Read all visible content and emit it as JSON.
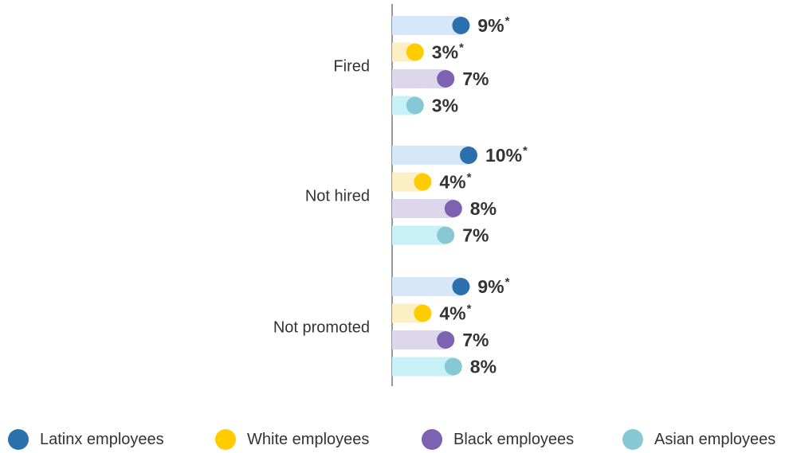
{
  "chart_data": {
    "type": "bar",
    "categories": [
      "Fired",
      "Not hired",
      "Not promoted"
    ],
    "unit": "%",
    "series": [
      {
        "name": "Latinx employees",
        "color": "#2c6fad",
        "track_color": "#d6e7fa",
        "values": [
          9,
          10,
          9
        ],
        "labels": [
          "9%",
          "10%",
          "9%"
        ],
        "significant": [
          true,
          true,
          true
        ]
      },
      {
        "name": "White employees",
        "color": "#ffcc00",
        "track_color": "#fbefc3",
        "values": [
          3,
          4,
          4
        ],
        "labels": [
          "3%",
          "4%",
          "4%"
        ],
        "significant": [
          true,
          true,
          true
        ]
      },
      {
        "name": "Black employees",
        "color": "#7c62b0",
        "track_color": "#dcd7ea",
        "values": [
          7,
          8,
          7
        ],
        "labels": [
          "7%",
          "8%",
          "7%"
        ],
        "significant": [
          false,
          false,
          false
        ]
      },
      {
        "name": "Asian employees",
        "color": "#86c8d4",
        "track_color": "#c8f0f7",
        "values": [
          3,
          7,
          8
        ],
        "labels": [
          "3%",
          "7%",
          "8%"
        ],
        "significant": [
          false,
          false,
          false
        ]
      }
    ],
    "significance_marker": "*",
    "legend_position": "bottom",
    "grid": false
  },
  "legend": {
    "items": [
      {
        "label": "Latinx employees",
        "color": "#2c6fad"
      },
      {
        "label": "White employees",
        "color": "#ffcc00"
      },
      {
        "label": "Black employees",
        "color": "#7c62b0"
      },
      {
        "label": "Asian employees",
        "color": "#86c8d4"
      }
    ]
  }
}
